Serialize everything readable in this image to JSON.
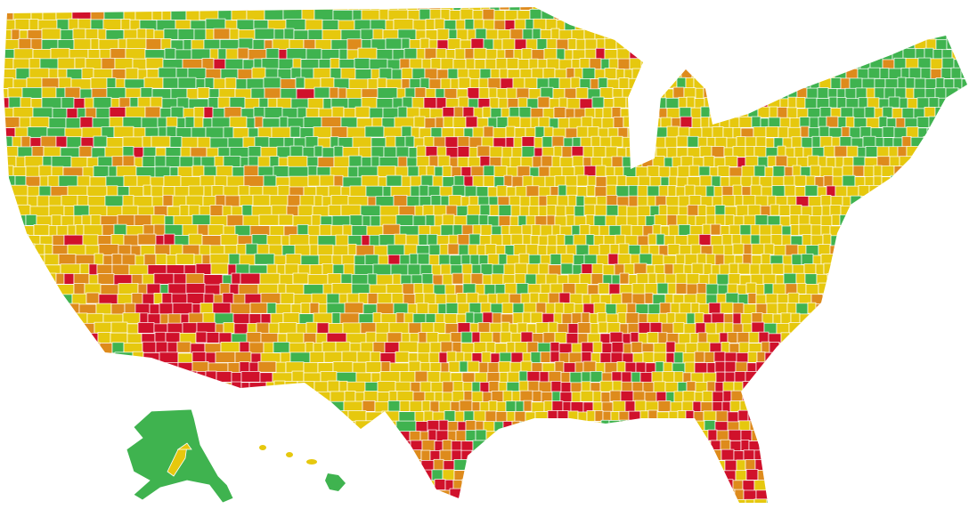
{
  "map": {
    "type": "choropleth",
    "regions": [
      "contiguous-us-counties",
      "alaska",
      "hawaii"
    ],
    "palette": {
      "green": "#3fb34f",
      "yellow": "#e6c80e",
      "orange": "#de8b1c",
      "red": "#d0112b",
      "border": "#ffffff"
    }
  }
}
